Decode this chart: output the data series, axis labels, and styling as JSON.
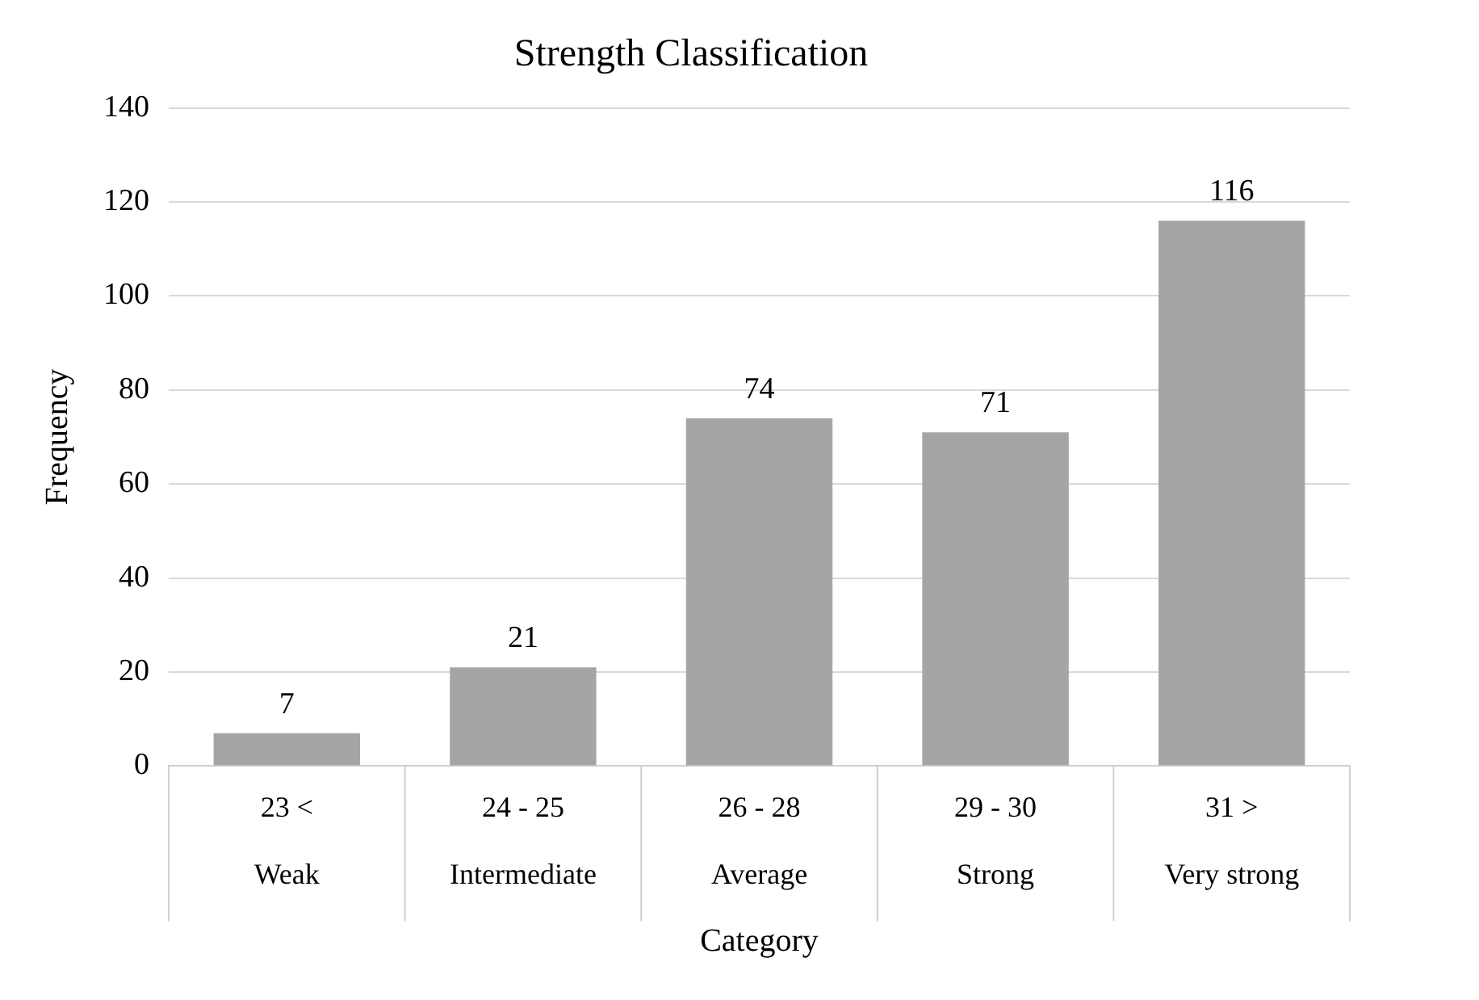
{
  "chart_data": {
    "type": "bar",
    "title": "Strength Classification",
    "xlabel": "Category",
    "ylabel": "Frequency",
    "categories": [
      "23 <\nWeak",
      "24 - 25\nIntermediate",
      "26 - 28\nAverage",
      "29 - 30\nStrong",
      "31 >\nVery strong"
    ],
    "values": [
      7,
      21,
      74,
      71,
      116
    ],
    "color": "#a5a5a5",
    "ylim": [
      0,
      140
    ],
    "yticks": [
      0,
      20,
      40,
      60,
      80,
      100,
      120,
      140
    ],
    "grid": "y",
    "data_labels": true
  }
}
